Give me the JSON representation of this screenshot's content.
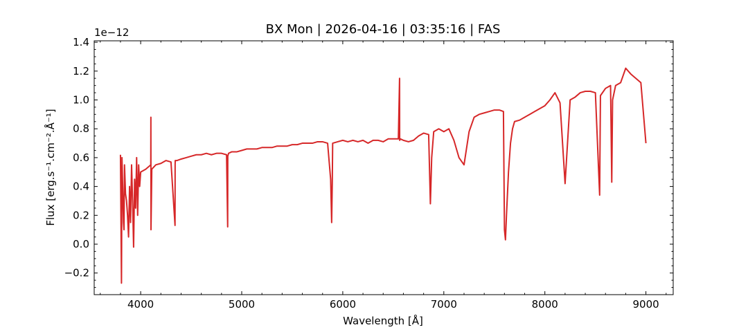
{
  "chart_data": {
    "type": "line",
    "title": "BX Mon | 2026-04-16 | 03:35:16 | FAS",
    "xlabel": "Wavelength [Å]",
    "ylabel": "Flux [erg.s⁻¹.cm⁻².Å⁻¹]",
    "y_offset_text": "1e−12",
    "xlim": [
      3540,
      9270
    ],
    "ylim": [
      -0.35,
      1.41
    ],
    "x_ticks": [
      4000,
      5000,
      6000,
      7000,
      8000,
      9000
    ],
    "x_tick_labels": [
      "4000",
      "5000",
      "6000",
      "7000",
      "8000",
      "9000"
    ],
    "y_ticks": [
      -0.2,
      0.0,
      0.2,
      0.4,
      0.6,
      0.8,
      1.0,
      1.2,
      1.4
    ],
    "y_tick_labels": [
      "−0.2",
      "0.0",
      "0.2",
      "0.4",
      "0.6",
      "0.8",
      "1.0",
      "1.2",
      "1.4"
    ],
    "grid": false,
    "series": [
      {
        "color": "#d62728",
        "x": [
          3800,
          3810,
          3815,
          3820,
          3825,
          3830,
          3835,
          3840,
          3850,
          3860,
          3870,
          3880,
          3890,
          3900,
          3910,
          3920,
          3930,
          3940,
          3950,
          3960,
          3970,
          3980,
          3990,
          4000,
          4050,
          4100,
          4101,
          4102,
          4110,
          4150,
          4200,
          4250,
          4300,
          4340,
          4341,
          4342,
          4360,
          4400,
          4450,
          4500,
          4550,
          4600,
          4650,
          4700,
          4750,
          4800,
          4850,
          4861,
          4862,
          4870,
          4900,
          4950,
          5000,
          5050,
          5100,
          5150,
          5200,
          5250,
          5300,
          5350,
          5400,
          5450,
          5500,
          5550,
          5600,
          5650,
          5700,
          5750,
          5800,
          5850,
          5880,
          5890,
          5896,
          5900,
          5950,
          6000,
          6050,
          6100,
          6150,
          6200,
          6250,
          6300,
          6350,
          6400,
          6450,
          6500,
          6550,
          6562,
          6563,
          6570,
          6600,
          6650,
          6700,
          6750,
          6800,
          6850,
          6867,
          6880,
          6900,
          6950,
          7000,
          7050,
          7100,
          7150,
          7200,
          7250,
          7300,
          7350,
          7400,
          7450,
          7500,
          7550,
          7590,
          7600,
          7610,
          7620,
          7640,
          7660,
          7680,
          7700,
          7750,
          7800,
          7850,
          7900,
          7950,
          8000,
          8050,
          8100,
          8150,
          8200,
          8250,
          8300,
          8350,
          8400,
          8450,
          8500,
          8542,
          8550,
          8600,
          8650,
          8662,
          8670,
          8700,
          8750,
          8800,
          8850,
          8900,
          8950,
          9000
        ],
        "y": [
          0.62,
          -0.27,
          0.6,
          0.45,
          0.3,
          0.15,
          0.1,
          0.55,
          0.35,
          0.3,
          0.2,
          0.05,
          0.4,
          0.15,
          0.55,
          0.3,
          -0.02,
          0.45,
          0.25,
          0.6,
          0.2,
          0.55,
          0.4,
          0.5,
          0.52,
          0.55,
          0.88,
          0.1,
          0.52,
          0.55,
          0.56,
          0.58,
          0.57,
          0.13,
          0.55,
          0.58,
          0.58,
          0.59,
          0.6,
          0.61,
          0.62,
          0.62,
          0.63,
          0.62,
          0.63,
          0.63,
          0.62,
          0.12,
          0.61,
          0.63,
          0.64,
          0.64,
          0.65,
          0.66,
          0.66,
          0.66,
          0.67,
          0.67,
          0.67,
          0.68,
          0.68,
          0.68,
          0.69,
          0.69,
          0.7,
          0.7,
          0.7,
          0.71,
          0.71,
          0.7,
          0.45,
          0.15,
          0.42,
          0.7,
          0.71,
          0.72,
          0.71,
          0.72,
          0.71,
          0.72,
          0.7,
          0.72,
          0.72,
          0.71,
          0.73,
          0.73,
          0.73,
          1.15,
          0.72,
          0.73,
          0.72,
          0.71,
          0.72,
          0.75,
          0.77,
          0.76,
          0.28,
          0.6,
          0.78,
          0.8,
          0.78,
          0.8,
          0.72,
          0.6,
          0.55,
          0.78,
          0.88,
          0.9,
          0.91,
          0.92,
          0.93,
          0.93,
          0.92,
          0.1,
          0.03,
          0.2,
          0.5,
          0.7,
          0.8,
          0.85,
          0.86,
          0.88,
          0.9,
          0.92,
          0.94,
          0.96,
          1.0,
          1.05,
          0.98,
          0.42,
          1.0,
          1.02,
          1.05,
          1.06,
          1.06,
          1.05,
          0.34,
          1.03,
          1.08,
          1.1,
          0.43,
          1.0,
          1.1,
          1.12,
          1.22,
          1.18,
          1.15,
          1.12,
          0.7
        ]
      }
    ]
  }
}
